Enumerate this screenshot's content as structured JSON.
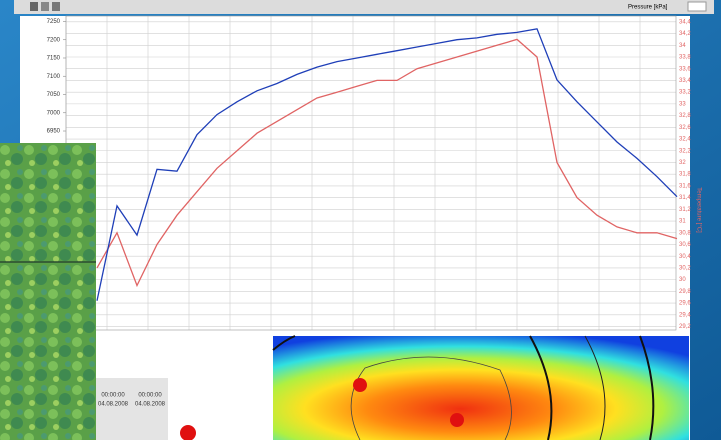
{
  "chart_data": {
    "type": "line",
    "toolbar_label": "Pressure [kPa]",
    "y2_label": "Temperature [°C]",
    "categories": [
      null,
      null,
      null,
      null,
      null,
      null,
      null,
      null,
      null,
      null,
      null,
      null,
      null,
      null,
      null,
      null,
      null,
      null,
      null,
      null,
      null,
      null,
      null,
      null,
      null,
      null,
      null,
      null,
      null,
      null
    ],
    "x_tick_labels": [
      {
        "time": "00:00:00",
        "date": "04.08.2008"
      },
      {
        "time": "00:00:00",
        "date": "04.08.2008"
      }
    ],
    "series": [
      {
        "color": "#1f3fb8",
        "values": [
          6485,
          6745,
          6665,
          6845,
          6840,
          6940,
          6995,
          7030,
          7060,
          7080,
          7105,
          7125,
          7140,
          7150,
          7160,
          7170,
          7180,
          7190,
          7200,
          7205,
          7215,
          7220,
          7230,
          7090,
          7030,
          6975,
          6920,
          6875,
          6825,
          6770
        ]
      },
      {
        "color": "#e06464",
        "axis": "y2",
        "values": [
          30.2,
          30.8,
          29.9,
          30.6,
          31.1,
          31.5,
          31.9,
          32.2,
          32.5,
          32.7,
          32.9,
          33.1,
          33.2,
          33.3,
          33.4,
          33.4,
          33.6,
          33.7,
          33.8,
          33.9,
          34.0,
          34.1,
          33.8,
          32.0,
          31.4,
          31.1,
          30.9,
          30.8,
          30.8,
          30.7
        ]
      }
    ],
    "ylim": [
      6405,
      7265
    ],
    "yticks": [
      7250,
      7200,
      7150,
      7100,
      7050,
      7000,
      6950
    ],
    "y2lim": [
      29.14,
      34.5
    ],
    "y2ticks": [
      {
        "value": 34.4,
        "label": "34,4"
      },
      {
        "value": 34.2,
        "label": "34,2"
      },
      34,
      {
        "value": 33.8,
        "label": "33,8"
      },
      {
        "value": 33.6,
        "label": "33,6"
      },
      {
        "value": 33.4,
        "label": "33,4"
      },
      {
        "value": 33.2,
        "label": "33,2"
      },
      33,
      {
        "value": 32.8,
        "label": "32,8"
      },
      {
        "value": 32.6,
        "label": "32,6"
      },
      {
        "value": 32.4,
        "label": "32,4"
      },
      {
        "value": 32.2,
        "label": "32,2"
      },
      32,
      {
        "value": 31.8,
        "label": "31,8"
      },
      {
        "value": 31.6,
        "label": "31,6"
      },
      {
        "value": 31.4,
        "label": "31,4"
      },
      {
        "value": 31.2,
        "label": "31,2"
      },
      31,
      {
        "value": 30.8,
        "label": "30,8"
      },
      {
        "value": 30.6,
        "label": "30,6"
      },
      {
        "value": 30.4,
        "label": "30,4"
      },
      {
        "value": 30.2,
        "label": "30,2"
      },
      30,
      {
        "value": 29.8,
        "label": "29,8"
      },
      {
        "value": 29.6,
        "label": "29,6"
      },
      {
        "value": 29.4,
        "label": "29,4"
      },
      {
        "value": 29.2,
        "label": "29,2"
      }
    ],
    "grid": true
  }
}
